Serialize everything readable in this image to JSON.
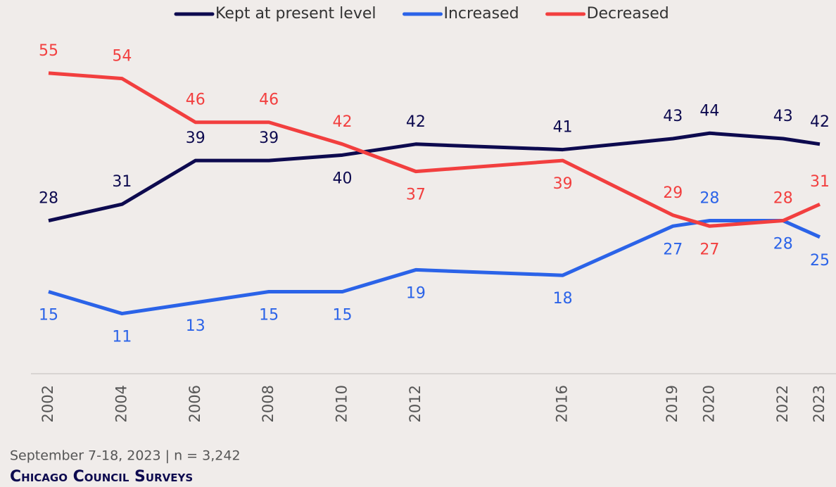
{
  "chart_data": {
    "type": "line",
    "x": [
      2002,
      2004,
      2006,
      2008,
      2010,
      2012,
      2016,
      2019,
      2020,
      2022,
      2023
    ],
    "xlim": [
      2002,
      2023
    ],
    "xticks": [
      2002,
      2004,
      2006,
      2008,
      2010,
      2012,
      2016,
      2019,
      2020,
      2022,
      2023
    ],
    "ylim": [
      0,
      60
    ],
    "series": [
      {
        "name": "Kept at present level",
        "color": "#0d0a4f",
        "values": [
          28,
          31,
          39,
          39,
          40,
          42,
          41,
          43,
          44,
          43,
          42
        ]
      },
      {
        "name": "Increased",
        "color": "#2b63e8",
        "values": [
          15,
          11,
          13,
          15,
          15,
          19,
          18,
          27,
          28,
          28,
          25
        ]
      },
      {
        "name": "Decreased",
        "color": "#f23f3f",
        "values": [
          55,
          54,
          46,
          46,
          42,
          37,
          39,
          29,
          27,
          28,
          31
        ]
      }
    ],
    "footnote": "September 7-18, 2023 | n = 3,242",
    "source": "Chicago Council Surveys"
  }
}
